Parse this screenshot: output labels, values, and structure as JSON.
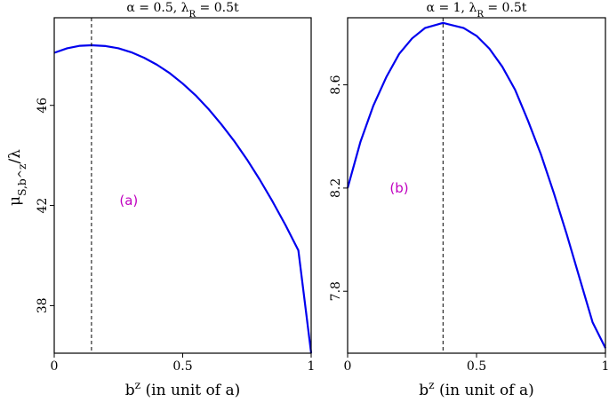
{
  "figure": {
    "ylabel": "μ_{S,b^z}/λ"
  },
  "chart_data": [
    {
      "type": "line",
      "title": "α = 0.5, λ_R = 0.5t",
      "xlabel": "b^z (in unit of a)",
      "ylabel": "μ_{S,b^z}/λ",
      "annotation": "(a)",
      "xlim": [
        0,
        1
      ],
      "ylim": [
        36.1,
        49.5
      ],
      "xticks": [
        0,
        0.5,
        1
      ],
      "xtick_labels": [
        "0",
        "0.5",
        "1"
      ],
      "yticks": [
        38,
        42,
        46
      ],
      "ytick_labels": [
        "38",
        "42",
        "46"
      ],
      "vline_x": 0.145,
      "grid": false,
      "series": [
        {
          "color": "#0000ee",
          "x": [
            0,
            0.05,
            0.1,
            0.145,
            0.2,
            0.25,
            0.3,
            0.35,
            0.4,
            0.45,
            0.5,
            0.55,
            0.6,
            0.65,
            0.7,
            0.75,
            0.8,
            0.85,
            0.9,
            0.95,
            1.0
          ],
          "y": [
            48.1,
            48.28,
            48.38,
            48.4,
            48.37,
            48.28,
            48.12,
            47.9,
            47.62,
            47.28,
            46.87,
            46.4,
            45.86,
            45.25,
            44.58,
            43.84,
            43.03,
            42.16,
            41.22,
            40.21,
            36.1
          ]
        }
      ]
    },
    {
      "type": "line",
      "title": "α = 1, λ_R = 0.5t",
      "xlabel": "b^z (in unit of a)",
      "annotation": "(b)",
      "xlim": [
        0,
        1
      ],
      "ylim": [
        7.56,
        8.86
      ],
      "xticks": [
        0,
        0.5,
        1
      ],
      "xtick_labels": [
        "0",
        "0.5",
        "1"
      ],
      "yticks": [
        7.8,
        8.2,
        8.6
      ],
      "ytick_labels": [
        "7.8",
        "8.2",
        "8.6"
      ],
      "vline_x": 0.37,
      "grid": false,
      "series": [
        {
          "color": "#0000ee",
          "x": [
            0,
            0.05,
            0.1,
            0.15,
            0.2,
            0.25,
            0.3,
            0.37,
            0.45,
            0.5,
            0.55,
            0.6,
            0.65,
            0.7,
            0.75,
            0.8,
            0.85,
            0.9,
            0.95,
            1.0
          ],
          "y": [
            8.2,
            8.38,
            8.52,
            8.63,
            8.72,
            8.78,
            8.82,
            8.84,
            8.82,
            8.79,
            8.74,
            8.67,
            8.58,
            8.46,
            8.33,
            8.18,
            8.02,
            7.85,
            7.68,
            7.58
          ]
        }
      ]
    }
  ]
}
